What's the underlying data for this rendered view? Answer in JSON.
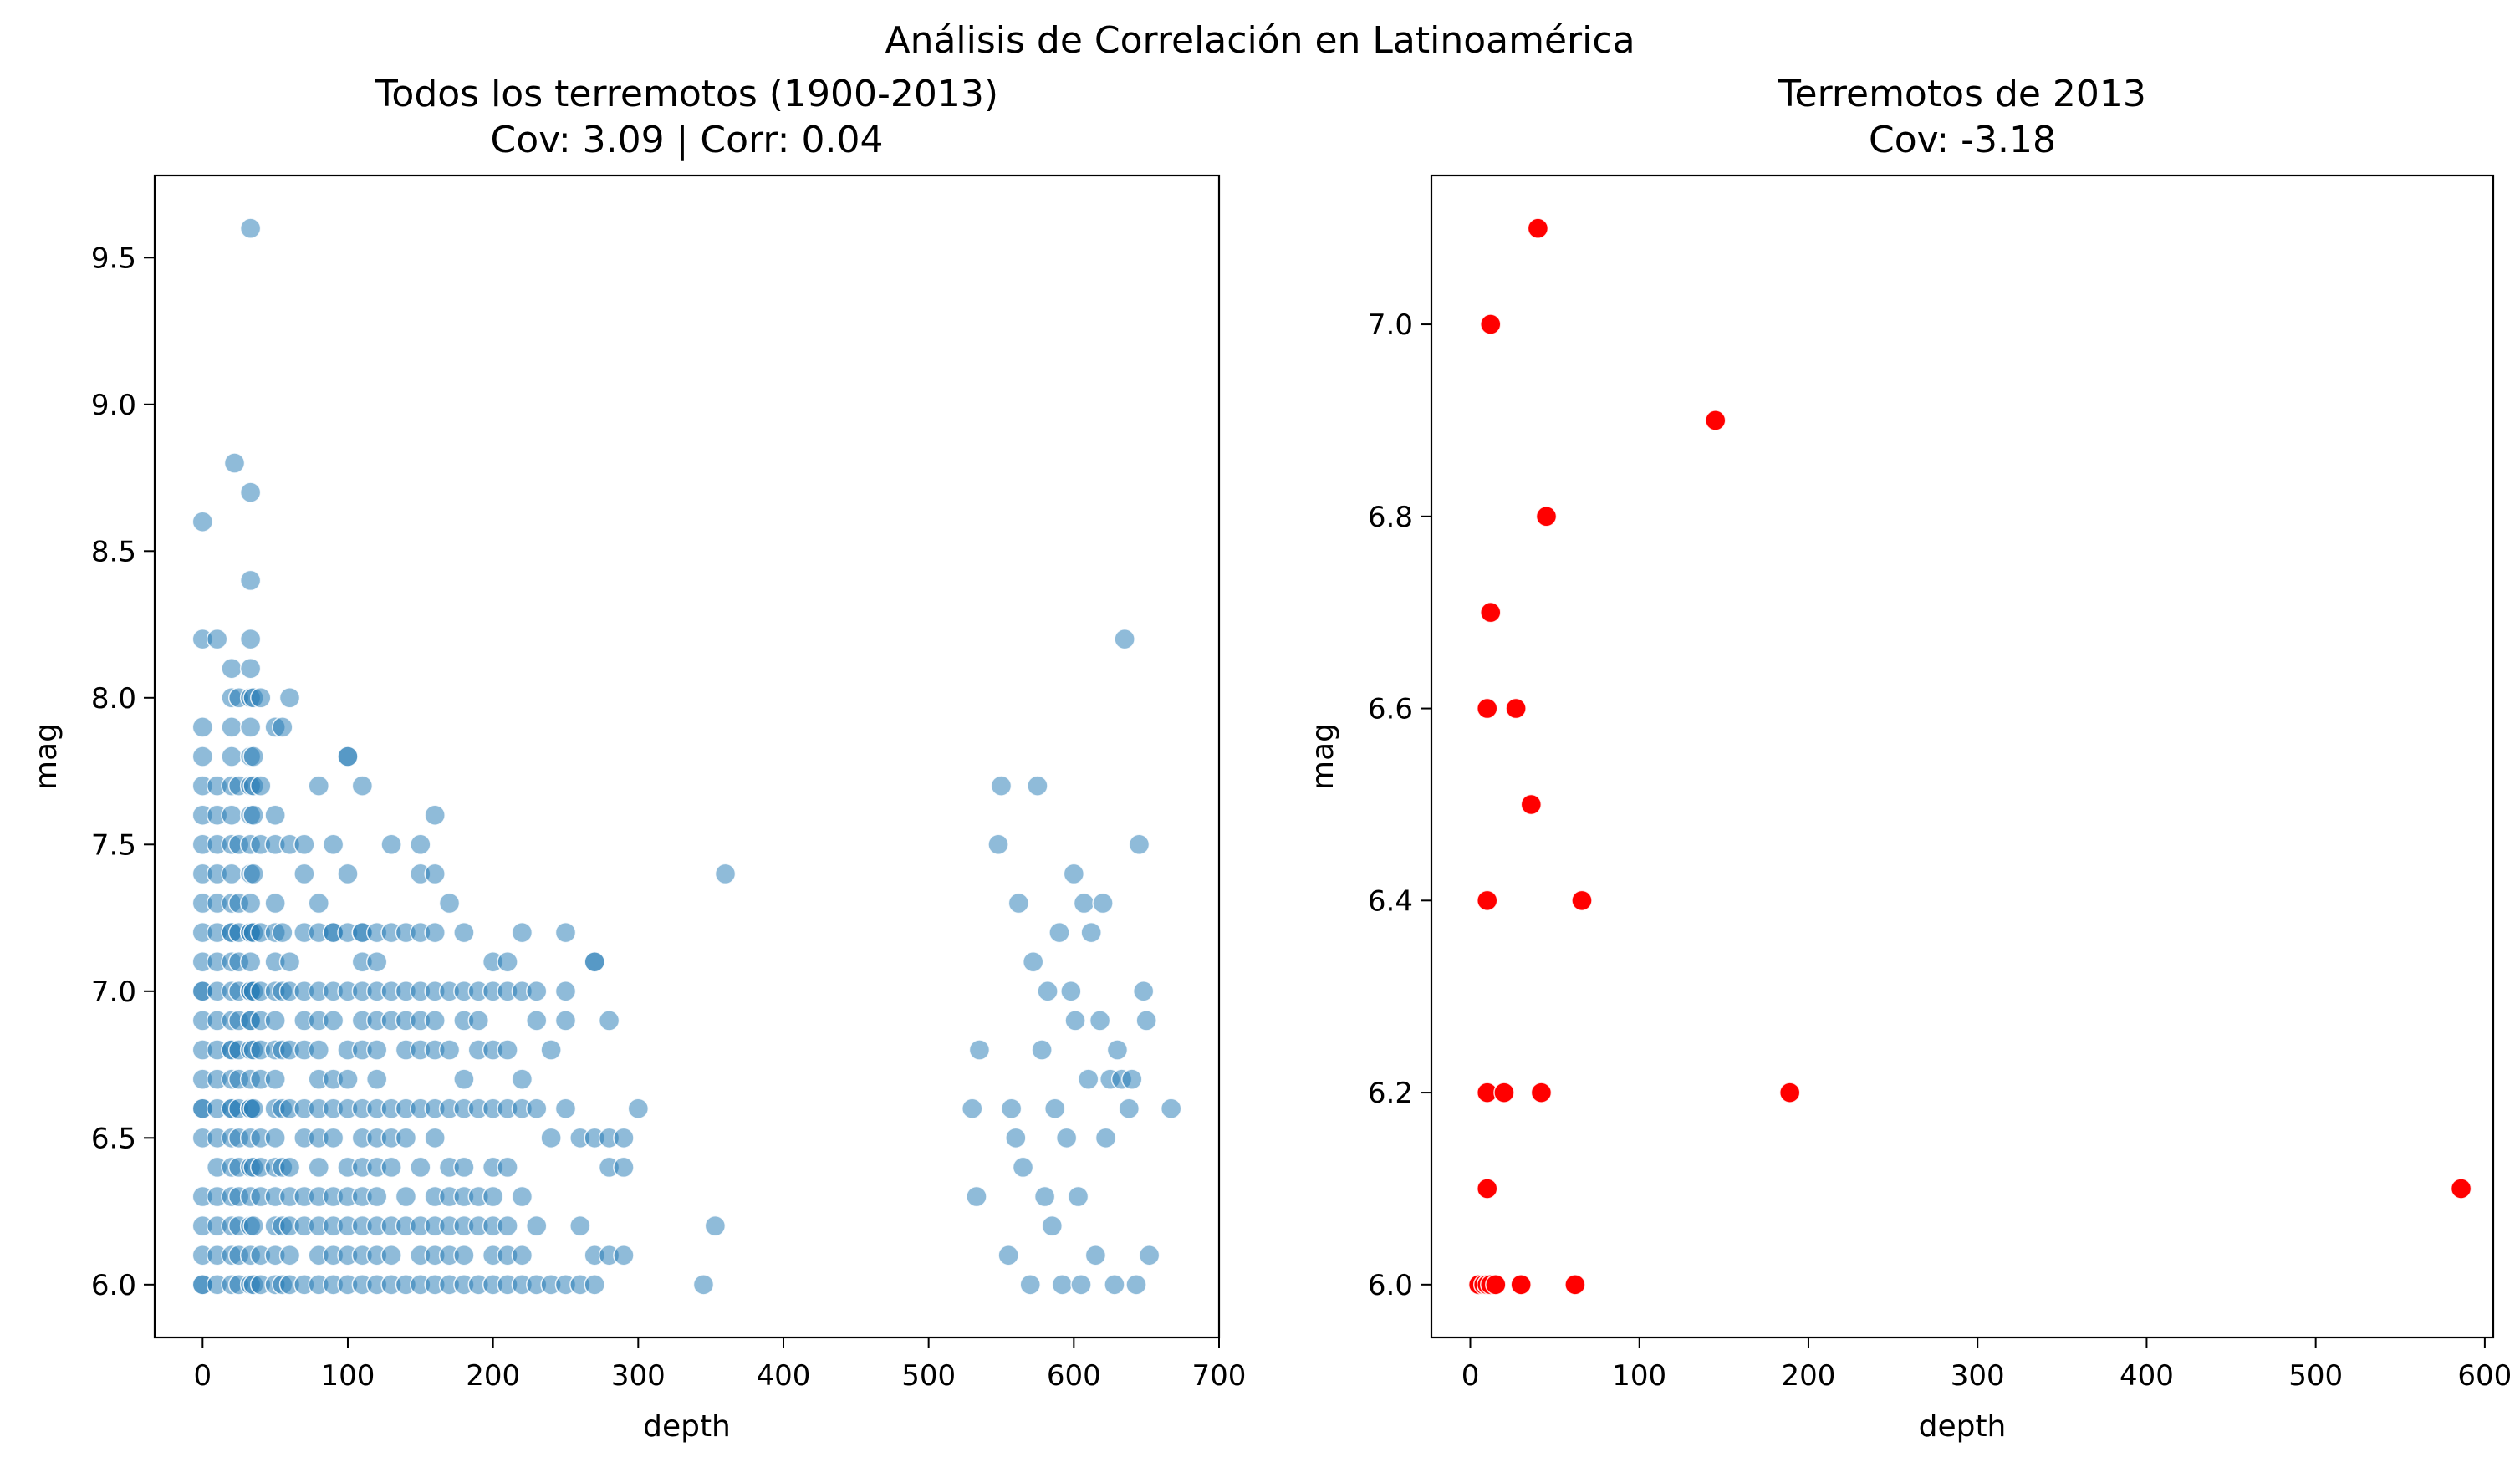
{
  "figure_title": "Análisis de Correlación en Latinoamérica",
  "chart_data": [
    {
      "type": "scatter",
      "title": "Todos los terremotos (1900-2013)",
      "subtitle": "Cov: 3.09 | Corr: 0.04",
      "xlabel": "depth",
      "ylabel": "mag",
      "xlim": [
        -33,
        700
      ],
      "ylim": [
        5.82,
        9.78
      ],
      "xticks": [
        0,
        100,
        200,
        300,
        400,
        500,
        600,
        700
      ],
      "yticks": [
        6.0,
        6.5,
        7.0,
        7.5,
        8.0,
        8.5,
        9.0,
        9.5
      ],
      "ytick_labels": [
        "6.0",
        "6.5",
        "7.0",
        "7.5",
        "8.0",
        "8.5",
        "9.0",
        "9.5"
      ],
      "grid": false,
      "marker_color": "#1f77b4",
      "marker_opacity": 0.5,
      "series": [
        {
          "x": [
            0,
            0,
            0,
            0,
            0,
            0,
            0,
            0,
            0,
            0,
            0,
            0,
            0,
            0,
            0,
            0,
            0,
            0,
            0,
            0,
            0,
            0,
            0,
            0,
            10,
            10,
            10,
            10,
            10,
            10,
            10,
            10,
            10,
            10,
            10,
            10,
            10,
            10,
            10,
            10,
            10,
            10,
            10,
            20,
            20,
            20,
            20,
            20,
            20,
            20,
            20,
            20,
            20,
            20,
            20,
            20,
            20,
            20,
            20,
            20,
            20,
            20,
            20,
            20,
            20,
            20,
            20,
            20,
            22,
            25,
            25,
            25,
            25,
            25,
            25,
            25,
            25,
            25,
            25,
            25,
            25,
            25,
            25,
            25,
            25,
            25,
            33,
            33,
            33,
            33,
            33,
            33,
            33,
            33,
            33,
            33,
            33,
            33,
            33,
            33,
            33,
            33,
            33,
            33,
            33,
            33,
            33,
            33,
            33,
            33,
            33,
            33,
            33,
            33,
            33,
            33,
            35,
            35,
            35,
            35,
            35,
            35,
            35,
            35,
            35,
            35,
            35,
            35,
            40,
            40,
            40,
            40,
            40,
            40,
            40,
            40,
            40,
            40,
            40,
            40,
            40,
            50,
            50,
            50,
            50,
            50,
            50,
            50,
            50,
            50,
            50,
            50,
            50,
            50,
            50,
            50,
            50,
            50,
            55,
            55,
            55,
            55,
            55,
            55,
            55,
            55,
            60,
            60,
            60,
            60,
            60,
            60,
            60,
            60,
            60,
            60,
            60,
            70,
            70,
            70,
            70,
            70,
            70,
            70,
            70,
            70,
            70,
            70,
            80,
            80,
            80,
            80,
            80,
            80,
            80,
            80,
            80,
            80,
            80,
            80,
            80,
            80,
            90,
            90,
            90,
            90,
            90,
            90,
            90,
            90,
            90,
            90,
            90,
            90,
            100,
            100,
            100,
            100,
            100,
            100,
            100,
            100,
            100,
            100,
            100,
            100,
            100,
            110,
            110,
            110,
            110,
            110,
            110,
            110,
            110,
            110,
            110,
            110,
            110,
            110,
            110,
            120,
            120,
            120,
            120,
            120,
            120,
            120,
            120,
            120,
            120,
            120,
            120,
            120,
            130,
            130,
            130,
            130,
            130,
            130,
            130,
            130,
            130,
            130,
            140,
            140,
            140,
            140,
            140,
            140,
            140,
            140,
            140,
            150,
            150,
            150,
            150,
            150,
            150,
            150,
            150,
            150,
            150,
            150,
            160,
            160,
            160,
            160,
            160,
            160,
            160,
            160,
            160,
            160,
            160,
            160,
            170,
            170,
            170,
            170,
            170,
            170,
            170,
            170,
            170,
            180,
            180,
            180,
            180,
            180,
            180,
            180,
            180,
            180,
            180,
            190,
            190,
            190,
            190,
            190,
            190,
            190,
            200,
            200,
            200,
            200,
            200,
            200,
            200,
            200,
            200,
            210,
            210,
            210,
            210,
            210,
            210,
            210,
            210,
            220,
            220,
            220,
            220,
            220,
            220,
            220,
            230,
            230,
            230,
            230,
            230,
            240,
            240,
            240,
            250,
            250,
            250,
            250,
            250,
            260,
            260,
            260,
            270,
            270,
            270,
            270,
            270,
            280,
            280,
            280,
            280,
            290,
            290,
            290,
            300,
            345,
            353,
            360,
            530,
            533,
            535,
            548,
            550,
            555,
            557,
            560,
            562,
            565,
            570,
            572,
            575,
            578,
            580,
            582,
            585,
            587,
            590,
            592,
            595,
            598,
            600,
            601,
            603,
            605,
            607,
            610,
            612,
            615,
            618,
            620,
            622,
            625,
            628,
            630,
            633,
            635,
            638,
            640,
            643,
            645,
            648,
            650,
            652,
            667
          ],
          "y": [
            6.0,
            6.1,
            6.2,
            6.3,
            6.5,
            6.6,
            6.7,
            6.8,
            6.9,
            7.0,
            7.1,
            7.2,
            7.3,
            7.4,
            7.5,
            7.6,
            7.7,
            7.8,
            7.9,
            8.2,
            8.6,
            6.6,
            7.0,
            6.0,
            6.0,
            6.1,
            6.2,
            6.3,
            6.4,
            6.5,
            6.6,
            6.7,
            6.8,
            6.9,
            7.0,
            7.1,
            7.2,
            7.3,
            7.4,
            7.5,
            7.6,
            7.7,
            8.2,
            6.0,
            6.1,
            6.2,
            6.3,
            6.4,
            6.5,
            6.6,
            6.7,
            6.8,
            6.9,
            7.0,
            7.1,
            7.2,
            7.3,
            7.4,
            7.5,
            7.6,
            7.7,
            7.8,
            7.9,
            8.0,
            8.1,
            7.2,
            6.6,
            6.8,
            8.8,
            6.0,
            6.1,
            6.2,
            6.3,
            6.4,
            6.5,
            6.6,
            6.7,
            6.8,
            6.9,
            7.0,
            7.1,
            7.2,
            7.3,
            7.5,
            7.7,
            8.0,
            6.0,
            6.1,
            6.2,
            6.3,
            6.4,
            6.5,
            6.6,
            6.7,
            6.8,
            6.9,
            7.0,
            7.1,
            7.2,
            7.3,
            7.4,
            7.5,
            7.6,
            7.7,
            7.8,
            7.9,
            8.0,
            8.1,
            8.2,
            8.4,
            8.7,
            9.6,
            6.6,
            6.9,
            7.0,
            7.2,
            6.0,
            6.2,
            6.4,
            6.6,
            6.8,
            7.0,
            7.2,
            7.4,
            7.6,
            7.7,
            7.8,
            8.0,
            6.0,
            6.1,
            6.3,
            6.4,
            6.5,
            6.7,
            6.8,
            6.9,
            7.0,
            7.2,
            7.5,
            7.7,
            8.0,
            6.0,
            6.1,
            6.2,
            6.3,
            6.4,
            6.5,
            6.6,
            6.7,
            6.8,
            6.9,
            7.0,
            7.1,
            7.2,
            7.3,
            7.5,
            7.6,
            7.9,
            6.0,
            6.2,
            6.4,
            6.6,
            6.8,
            7.0,
            7.2,
            7.9,
            6.0,
            6.1,
            6.2,
            6.3,
            6.4,
            6.6,
            6.8,
            7.0,
            7.1,
            7.5,
            8.0,
            6.0,
            6.2,
            6.3,
            6.5,
            6.6,
            6.8,
            6.9,
            7.0,
            7.2,
            7.4,
            7.5,
            6.0,
            6.1,
            6.2,
            6.3,
            6.4,
            6.5,
            6.6,
            6.7,
            6.8,
            6.9,
            7.0,
            7.2,
            7.3,
            7.7,
            6.0,
            6.1,
            6.2,
            6.3,
            6.5,
            6.6,
            6.7,
            6.9,
            7.0,
            7.2,
            7.5,
            7.2,
            6.0,
            6.1,
            6.2,
            6.3,
            6.4,
            6.6,
            6.7,
            6.8,
            7.0,
            7.2,
            7.4,
            7.8,
            7.8,
            6.0,
            6.1,
            6.2,
            6.3,
            6.4,
            6.5,
            6.6,
            6.8,
            6.9,
            7.0,
            7.1,
            7.2,
            7.7,
            7.2,
            6.0,
            6.1,
            6.2,
            6.3,
            6.4,
            6.5,
            6.6,
            6.7,
            6.8,
            6.9,
            7.0,
            7.1,
            7.2,
            6.0,
            6.1,
            6.2,
            6.4,
            6.5,
            6.6,
            6.9,
            7.0,
            7.2,
            7.5,
            6.0,
            6.2,
            6.3,
            6.5,
            6.6,
            6.8,
            6.9,
            7.0,
            7.2,
            6.0,
            6.1,
            6.2,
            6.4,
            6.6,
            6.8,
            6.9,
            7.0,
            7.2,
            7.4,
            7.5,
            6.0,
            6.1,
            6.2,
            6.3,
            6.5,
            6.6,
            6.8,
            6.9,
            7.0,
            7.2,
            7.4,
            7.6,
            6.0,
            6.1,
            6.2,
            6.3,
            6.4,
            6.6,
            6.8,
            7.0,
            7.3,
            6.0,
            6.1,
            6.2,
            6.3,
            6.4,
            6.6,
            6.7,
            6.9,
            7.0,
            7.2,
            6.0,
            6.2,
            6.3,
            6.6,
            6.8,
            6.9,
            7.0,
            6.0,
            6.1,
            6.2,
            6.3,
            6.4,
            6.6,
            6.8,
            7.0,
            7.1,
            6.0,
            6.1,
            6.2,
            6.4,
            6.6,
            6.8,
            7.0,
            7.1,
            6.0,
            6.1,
            6.3,
            6.6,
            6.7,
            7.0,
            7.2,
            6.0,
            6.2,
            6.6,
            6.9,
            7.0,
            6.0,
            6.5,
            6.8,
            6.0,
            6.6,
            6.9,
            7.0,
            7.2,
            6.0,
            6.2,
            6.5,
            6.0,
            6.1,
            6.5,
            7.1,
            7.1,
            6.1,
            6.4,
            6.5,
            6.9,
            6.1,
            6.4,
            6.5,
            6.6,
            6.0,
            6.2,
            7.4,
            6.6,
            6.3,
            6.8,
            7.5,
            7.7,
            6.1,
            6.6,
            6.5,
            7.3,
            6.4,
            6.0,
            7.1,
            7.7,
            6.8,
            6.3,
            7.0,
            6.2,
            6.6,
            7.2,
            6.0,
            6.5,
            7.0,
            7.4,
            6.9,
            6.3,
            6.0,
            7.3,
            6.7,
            7.2,
            6.1,
            6.9,
            7.3,
            6.5,
            6.7,
            6.0,
            6.8,
            6.7,
            8.2,
            6.6,
            6.7,
            6.0,
            7.5,
            7.0,
            6.9,
            6.1,
            6.6
          ]
        }
      ]
    },
    {
      "type": "scatter",
      "title": "Terremotos de 2013",
      "subtitle": "Cov: -3.18",
      "xlabel": "depth",
      "ylabel": "mag",
      "xlim": [
        -23,
        605
      ],
      "ylim": [
        5.945,
        7.155
      ],
      "xticks": [
        0,
        100,
        200,
        300,
        400,
        500,
        600
      ],
      "yticks": [
        6.0,
        6.2,
        6.4,
        6.6,
        6.8,
        7.0
      ],
      "ytick_labels": [
        "6.0",
        "6.2",
        "6.4",
        "6.6",
        "6.8",
        "7.0"
      ],
      "grid": false,
      "marker_color": "#ff0000",
      "marker_opacity": 1,
      "series": [
        {
          "x": [
            5,
            8,
            10,
            10,
            12,
            15,
            30,
            62,
            10,
            10,
            20,
            42,
            189,
            10,
            66,
            36,
            10,
            27,
            12,
            45,
            145,
            12,
            40,
            586
          ],
          "y": [
            6.0,
            6.0,
            6.0,
            6.0,
            6.0,
            6.0,
            6.0,
            6.0,
            6.1,
            6.2,
            6.2,
            6.2,
            6.2,
            6.4,
            6.4,
            6.5,
            6.6,
            6.6,
            6.7,
            6.8,
            6.9,
            7.0,
            7.1,
            6.1
          ]
        }
      ]
    }
  ]
}
